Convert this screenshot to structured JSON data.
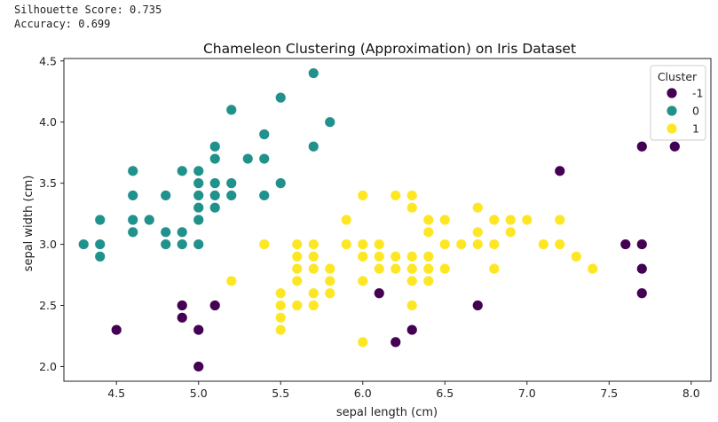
{
  "output": {
    "silhouette_line": "Silhouette Score: 0.735",
    "accuracy_line": "Accuracy: 0.699"
  },
  "chart_data": {
    "type": "scatter",
    "title": "Chameleon Clustering (Approximation) on Iris Dataset",
    "xlabel": "sepal length (cm)",
    "ylabel": "sepal width (cm)",
    "xlim": [
      4.18,
      8.12
    ],
    "ylim": [
      1.88,
      4.52
    ],
    "xticks": [
      4.5,
      5.0,
      5.5,
      6.0,
      6.5,
      7.0,
      7.5,
      8.0
    ],
    "yticks": [
      2.0,
      2.5,
      3.0,
      3.5,
      4.0,
      4.5
    ],
    "grid": false,
    "legend": {
      "title": "Cluster",
      "placement": "top-right",
      "entries": [
        {
          "label": "-1",
          "color": "#440154"
        },
        {
          "label": "0",
          "color": "#21918c"
        },
        {
          "label": "1",
          "color": "#fde725"
        }
      ]
    },
    "series": [
      {
        "name": "-1",
        "color": "#440154",
        "points": [
          [
            4.5,
            2.3
          ],
          [
            4.9,
            2.5
          ],
          [
            4.9,
            2.4
          ],
          [
            5.0,
            2.3
          ],
          [
            5.0,
            2.0
          ],
          [
            5.1,
            2.5
          ],
          [
            6.1,
            2.6
          ],
          [
            6.2,
            2.2
          ],
          [
            6.3,
            2.3
          ],
          [
            6.7,
            2.5
          ],
          [
            7.2,
            3.6
          ],
          [
            7.6,
            3.0
          ],
          [
            7.7,
            3.8
          ],
          [
            7.7,
            3.0
          ],
          [
            7.7,
            2.8
          ],
          [
            7.7,
            2.6
          ],
          [
            7.9,
            3.8
          ]
        ]
      },
      {
        "name": "0",
        "color": "#21918c",
        "points": [
          [
            4.3,
            3.0
          ],
          [
            4.4,
            3.2
          ],
          [
            4.4,
            3.0
          ],
          [
            4.4,
            2.9
          ],
          [
            4.6,
            3.6
          ],
          [
            4.6,
            3.4
          ],
          [
            4.6,
            3.2
          ],
          [
            4.6,
            3.1
          ],
          [
            4.7,
            3.2
          ],
          [
            4.8,
            3.4
          ],
          [
            4.8,
            3.1
          ],
          [
            4.8,
            3.0
          ],
          [
            4.9,
            3.6
          ],
          [
            4.9,
            3.1
          ],
          [
            4.9,
            3.0
          ],
          [
            5.0,
            3.6
          ],
          [
            5.0,
            3.5
          ],
          [
            5.0,
            3.4
          ],
          [
            5.0,
            3.3
          ],
          [
            5.0,
            3.2
          ],
          [
            5.0,
            3.0
          ],
          [
            5.1,
            3.8
          ],
          [
            5.1,
            3.7
          ],
          [
            5.1,
            3.5
          ],
          [
            5.1,
            3.4
          ],
          [
            5.1,
            3.3
          ],
          [
            5.2,
            4.1
          ],
          [
            5.2,
            3.5
          ],
          [
            5.2,
            3.4
          ],
          [
            5.3,
            3.7
          ],
          [
            5.4,
            3.9
          ],
          [
            5.4,
            3.7
          ],
          [
            5.4,
            3.4
          ],
          [
            5.5,
            4.2
          ],
          [
            5.5,
            3.5
          ],
          [
            5.7,
            4.4
          ],
          [
            5.7,
            3.8
          ],
          [
            5.8,
            4.0
          ]
        ]
      },
      {
        "name": "1",
        "color": "#fde725",
        "points": [
          [
            5.2,
            2.7
          ],
          [
            5.4,
            3.0
          ],
          [
            5.5,
            2.6
          ],
          [
            5.5,
            2.5
          ],
          [
            5.5,
            2.4
          ],
          [
            5.5,
            2.3
          ],
          [
            5.6,
            3.0
          ],
          [
            5.6,
            2.9
          ],
          [
            5.6,
            2.8
          ],
          [
            5.6,
            2.7
          ],
          [
            5.6,
            2.5
          ],
          [
            5.7,
            3.0
          ],
          [
            5.7,
            2.9
          ],
          [
            5.7,
            2.8
          ],
          [
            5.7,
            2.6
          ],
          [
            5.7,
            2.5
          ],
          [
            5.8,
            2.8
          ],
          [
            5.8,
            2.7
          ],
          [
            5.8,
            2.6
          ],
          [
            5.9,
            3.2
          ],
          [
            5.9,
            3.0
          ],
          [
            6.0,
            3.4
          ],
          [
            6.0,
            3.0
          ],
          [
            6.0,
            2.9
          ],
          [
            6.0,
            2.7
          ],
          [
            6.0,
            2.2
          ],
          [
            6.1,
            3.0
          ],
          [
            6.1,
            2.9
          ],
          [
            6.1,
            2.8
          ],
          [
            6.2,
            3.4
          ],
          [
            6.2,
            2.9
          ],
          [
            6.2,
            2.8
          ],
          [
            6.3,
            3.4
          ],
          [
            6.3,
            3.3
          ],
          [
            6.3,
            2.9
          ],
          [
            6.3,
            2.8
          ],
          [
            6.3,
            2.7
          ],
          [
            6.3,
            2.5
          ],
          [
            6.4,
            3.2
          ],
          [
            6.4,
            3.1
          ],
          [
            6.4,
            2.9
          ],
          [
            6.4,
            2.8
          ],
          [
            6.4,
            2.7
          ],
          [
            6.5,
            3.2
          ],
          [
            6.5,
            3.0
          ],
          [
            6.5,
            2.8
          ],
          [
            6.6,
            3.0
          ],
          [
            6.7,
            3.3
          ],
          [
            6.7,
            3.1
          ],
          [
            6.7,
            3.0
          ],
          [
            6.8,
            3.2
          ],
          [
            6.8,
            3.0
          ],
          [
            6.8,
            2.8
          ],
          [
            6.9,
            3.2
          ],
          [
            6.9,
            3.1
          ],
          [
            7.0,
            3.2
          ],
          [
            7.1,
            3.0
          ],
          [
            7.2,
            3.2
          ],
          [
            7.2,
            3.0
          ],
          [
            7.3,
            2.9
          ],
          [
            7.4,
            2.8
          ]
        ]
      }
    ]
  }
}
